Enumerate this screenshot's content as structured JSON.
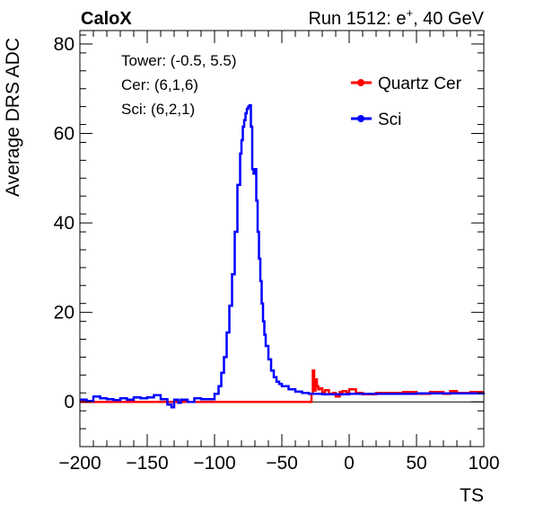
{
  "header": {
    "left_label": "CaloX",
    "right_label_prefix": "Run 1512: e",
    "right_label_sup": "+",
    "right_label_suffix": ", 40 GeV"
  },
  "info_box": {
    "lines": [
      "Tower: (-0.5, 5.5)",
      "Cer: (6,1,6)",
      "Sci: (6,2,1)"
    ]
  },
  "chart_data": {
    "type": "line",
    "title": "",
    "xlabel": "TS",
    "ylabel": "Average DRS ADC",
    "xlim": [
      -200,
      100
    ],
    "ylim": [
      -10,
      83
    ],
    "xticks": [
      -200,
      -150,
      -100,
      -50,
      0,
      50,
      100
    ],
    "xtick_labels": [
      "−200",
      "−150",
      "−100",
      "−50",
      "0",
      "50",
      "100"
    ],
    "yticks": [
      0,
      20,
      40,
      60,
      80
    ],
    "ytick_labels": [
      "0",
      "20",
      "40",
      "60",
      "80"
    ],
    "grid": false,
    "legend_position": "top-right",
    "series": [
      {
        "name": "Quartz Cer",
        "color": "#ff0000",
        "x": [
          -200,
          -29,
          -28,
          -27,
          -26,
          -25,
          -24,
          -23,
          -22,
          -20,
          -18,
          -15,
          -12,
          -10,
          -7,
          -5,
          -2,
          0,
          5,
          10,
          20,
          30,
          40,
          50,
          60,
          70,
          75,
          80,
          90,
          100
        ],
        "y": [
          0,
          0,
          1.8,
          7.0,
          2.5,
          5.0,
          3.5,
          2.8,
          3.0,
          2.2,
          2.6,
          1.8,
          2.0,
          1.2,
          2.2,
          2.4,
          2.0,
          2.8,
          2.0,
          1.7,
          2.0,
          2.0,
          2.2,
          1.8,
          2.2,
          1.8,
          2.4,
          2.0,
          2.2,
          2.2
        ]
      },
      {
        "name": "Sci",
        "color": "#0000ff",
        "x": [
          -200,
          -195,
          -190,
          -185,
          -180,
          -175,
          -170,
          -165,
          -160,
          -155,
          -150,
          -145,
          -140,
          -135,
          -132,
          -130,
          -127,
          -125,
          -120,
          -115,
          -110,
          -105,
          -100,
          -97,
          -95,
          -93,
          -91,
          -89,
          -87,
          -85,
          -83,
          -81,
          -80,
          -79,
          -78,
          -77,
          -76,
          -75,
          -74,
          -73,
          -72,
          -71,
          -70,
          -69,
          -68,
          -67,
          -66,
          -65,
          -64,
          -63,
          -62,
          -60,
          -58,
          -56,
          -54,
          -52,
          -50,
          -45,
          -40,
          -35,
          -30,
          -20,
          0,
          50,
          100
        ],
        "y": [
          0.5,
          0.2,
          1.2,
          0.8,
          0.6,
          0.4,
          0.8,
          0.5,
          1.0,
          0.8,
          1.0,
          1.5,
          0.6,
          -0.6,
          -1.2,
          0.5,
          -0.2,
          0.5,
          0.0,
          0.8,
          0.6,
          0.6,
          1.8,
          3.5,
          6.5,
          10.0,
          15.5,
          21.5,
          28.5,
          38.0,
          48.5,
          55.5,
          58.5,
          61.5,
          63.0,
          64.5,
          65.5,
          66.0,
          66.3,
          61.5,
          52.0,
          51.0,
          52.0,
          45.0,
          38.0,
          32.0,
          27.0,
          22.0,
          18.0,
          15.0,
          12.5,
          9.5,
          7.0,
          5.5,
          4.5,
          4.0,
          3.5,
          2.8,
          2.3,
          2.0,
          1.8,
          1.7,
          1.8,
          1.9,
          2.0
        ]
      }
    ]
  }
}
